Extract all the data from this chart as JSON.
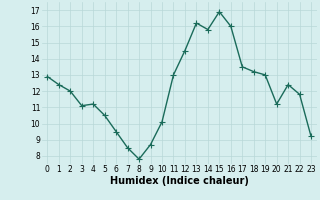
{
  "x": [
    0,
    1,
    2,
    3,
    4,
    5,
    6,
    7,
    8,
    9,
    10,
    11,
    12,
    13,
    14,
    15,
    16,
    17,
    18,
    19,
    20,
    21,
    22,
    23
  ],
  "y": [
    12.9,
    12.4,
    12.0,
    11.1,
    11.2,
    10.5,
    9.5,
    8.5,
    7.8,
    8.7,
    10.1,
    13.0,
    14.5,
    16.2,
    15.8,
    16.9,
    16.0,
    13.5,
    13.2,
    13.0,
    11.2,
    12.4,
    11.8,
    9.2
  ],
  "line_color": "#1a6b5a",
  "marker": "+",
  "marker_size": 4,
  "linewidth": 1.0,
  "xlabel": "Humidex (Indice chaleur)",
  "xlabel_fontsize": 7,
  "ylabel_ticks": [
    8,
    9,
    10,
    11,
    12,
    13,
    14,
    15,
    16,
    17
  ],
  "xtick_labels": [
    "0",
    "1",
    "2",
    "3",
    "4",
    "5",
    "6",
    "7",
    "8",
    "9",
    "10",
    "11",
    "12",
    "13",
    "14",
    "15",
    "16",
    "17",
    "18",
    "19",
    "20",
    "21",
    "22",
    "23"
  ],
  "ylim": [
    7.5,
    17.5
  ],
  "xlim": [
    -0.5,
    23.5
  ],
  "bg_color": "#d6eeee",
  "grid_color": "#b8d8d8",
  "tick_fontsize": 5.5,
  "markeredgewidth": 0.8
}
